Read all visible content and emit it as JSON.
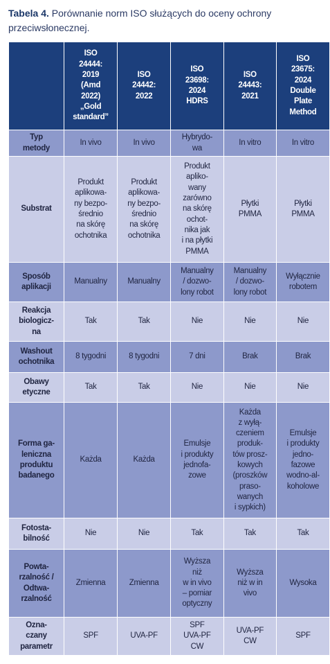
{
  "caption": {
    "label": "Tabela 4.",
    "text": "Porównanie norm ISO służących do oceny ochrony przeciwsłonecznej."
  },
  "table": {
    "header": [
      "ISO\n24444:\n2019\n(Amd\n2022)\n„Gold\nstandard”",
      "ISO\n24442:\n2022",
      "ISO\n23698:\n2024\nHDRS",
      "ISO\n24443:\n2021",
      "ISO\n23675:\n2024\nDouble\nPlate\nMethod"
    ],
    "rows": [
      {
        "label": "Typ\nmetody",
        "cells": [
          "In vivo",
          "In vivo",
          "Hybrydo-\nwa",
          "In vitro",
          "In vitro"
        ]
      },
      {
        "label": "Substrat",
        "cells": [
          "Produkt\naplikowa-\nny bezpo-\nśrednio\nna skórę\nochotnika",
          "Produkt\naplikowa-\nny bezpo-\nśrednio\nna skórę\nochotnika",
          "Produkt\napliko-\nwany\nzarówno\nna skórę\nochot-\nnika jak\ni na płytki\nPMMA",
          "Płytki\nPMMA",
          "Płytki\nPMMA"
        ]
      },
      {
        "label": "Sposób\naplikacji",
        "cells": [
          "Manualny",
          "Manualny",
          "Manualny\n/ dozwo-\nlony robot",
          "Manualny\n/ dozwo-\nlony robot",
          "Wyłącznie\nrobotem"
        ]
      },
      {
        "label": "Reakcja\nbiologicz-\nna",
        "cells": [
          "Tak",
          "Tak",
          "Nie",
          "Nie",
          "Nie"
        ]
      },
      {
        "label": "Washout\nochotnika",
        "cells": [
          "8 tygodni",
          "8 tygodni",
          "7 dni",
          "Brak",
          "Brak"
        ]
      },
      {
        "label": "Obawy\netyczne",
        "cells": [
          "Tak",
          "Tak",
          "Nie",
          "Nie",
          "Nie"
        ]
      },
      {
        "label": "Forma ga-\nleniczna\nproduktu\nbadanego",
        "cells": [
          "Każda",
          "Każda",
          "Emulsje\ni produkty\njednofa-\nzowe",
          "Każda\nz wyłą-\nczeniem\nproduk-\ntów prosz-\nkowych\n(proszków\npraso-\nwanych\ni sypkich)",
          "Emulsje\ni produkty\njedno-\nfazowe\nwodno-al-\nkoholowe"
        ]
      },
      {
        "label": "Fotosta-\nbilność",
        "cells": [
          "Nie",
          "Nie",
          "Tak",
          "Tak",
          "Tak"
        ]
      },
      {
        "label": "Powta-\nrzalność /\nOdtwa-\nrzalność",
        "cells": [
          "Zmienna",
          "Zmienna",
          "Wyższa\nniż\nw in vivo\n– pomiar\noptyczny",
          "Wyższa\nniż w in\nvivo",
          "Wysoka"
        ]
      },
      {
        "label": "Ozna-\nczany\nparametr",
        "cells": [
          "SPF",
          "UVA-PF",
          "SPF\nUVA-PF\nCW",
          "UVA-PF\nCW",
          "SPF"
        ]
      }
    ]
  }
}
